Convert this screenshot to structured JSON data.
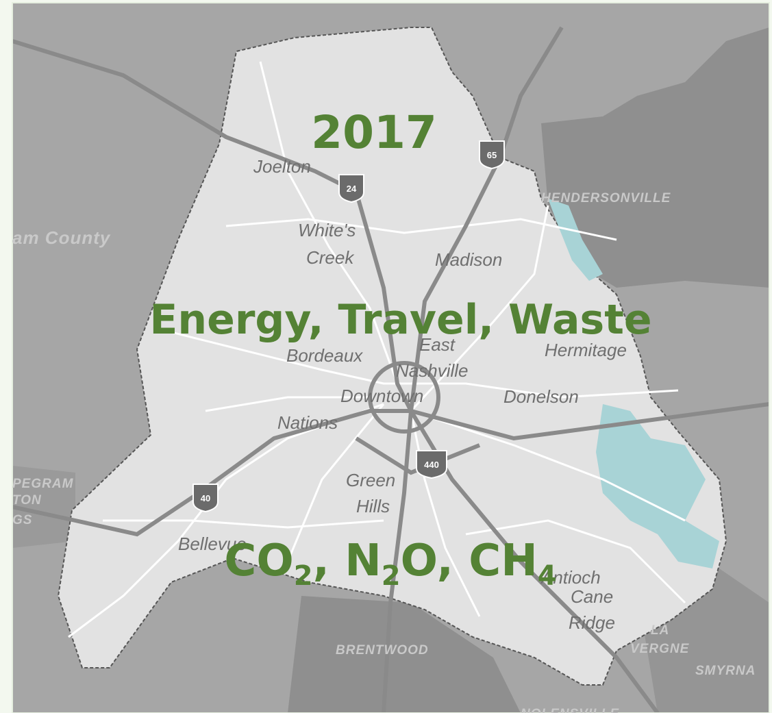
{
  "title": "2017",
  "subtitle": "Energy, Travel, Waste",
  "formula": [
    "CO",
    "2",
    ", N",
    "2",
    "O, CH",
    "4"
  ],
  "places": [
    "Joelton",
    "White's",
    "Creek",
    "Madison",
    "Bordeaux",
    "East",
    "Nashville",
    "Hermitage",
    "Downtown",
    "Donelson",
    "Nations",
    "Green",
    "Hills",
    "Bellevue",
    "Antioch",
    "Cane",
    "Ridge"
  ],
  "regions": [
    "am County",
    "HENDERSONVILLE",
    "PEGRAM",
    "TON",
    "GS",
    "BRENTWOOD",
    "LA",
    "VERGNE",
    "SMYRNA",
    "NOLENSVILLE"
  ],
  "shields": [
    "24",
    "65",
    "40",
    "440"
  ]
}
